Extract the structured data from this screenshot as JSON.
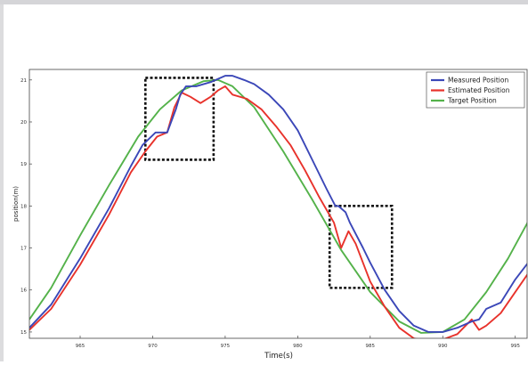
{
  "chart_data": {
    "type": "line",
    "title": "",
    "xlabel": "Time(s)",
    "ylabel": "position(m)",
    "xlim": [
      961.5,
      996
    ],
    "ylim": [
      14.85,
      21.25
    ],
    "x_ticks": [
      {
        "v": 965,
        "label": "965"
      },
      {
        "v": 970,
        "label": "970"
      },
      {
        "v": 975,
        "label": "975"
      },
      {
        "v": 980,
        "label": "980"
      },
      {
        "v": 985,
        "label": "985"
      },
      {
        "v": 990,
        "label": "990"
      },
      {
        "v": 995,
        "label": "995"
      }
    ],
    "y_ticks": [
      {
        "v": 15,
        "label": "15"
      },
      {
        "v": 16,
        "label": "16"
      },
      {
        "v": 17,
        "label": "17"
      },
      {
        "v": 18,
        "label": "18"
      },
      {
        "v": 19,
        "label": "19"
      },
      {
        "v": 20,
        "label": "20"
      },
      {
        "v": 21,
        "label": "21"
      }
    ],
    "legend_position": "top-right",
    "grid": false,
    "series": [
      {
        "name": "Measured Position",
        "color": "#3b47b8",
        "x": [
          961.5,
          963,
          965,
          967,
          968.5,
          969.3,
          970.2,
          971,
          971.6,
          971.9,
          972.3,
          973,
          974,
          975,
          975.5,
          976.3,
          977,
          978,
          979,
          980,
          981,
          982,
          982.6,
          982.8,
          983.3,
          983.6,
          984.5,
          985,
          986,
          987,
          988,
          989,
          990,
          991,
          992,
          992.5,
          993,
          994,
          995,
          996
        ],
        "y": [
          15.1,
          15.65,
          16.75,
          17.95,
          18.95,
          19.45,
          19.75,
          19.75,
          20.3,
          20.65,
          20.85,
          20.85,
          20.95,
          21.1,
          21.1,
          21.0,
          20.9,
          20.65,
          20.3,
          19.8,
          19.1,
          18.4,
          18.0,
          18.0,
          17.85,
          17.6,
          17.0,
          16.65,
          16.0,
          15.5,
          15.15,
          15.0,
          15.0,
          15.1,
          15.25,
          15.3,
          15.55,
          15.7,
          16.25,
          16.7
        ]
      },
      {
        "name": "Estimated Position",
        "color": "#e8322b",
        "x": [
          961.5,
          963,
          965,
          967,
          968.5,
          969.5,
          970.3,
          971,
          971.5,
          972,
          972.6,
          973.3,
          974,
          974.5,
          975,
          975.5,
          976.5,
          977.5,
          978.5,
          979.5,
          980.5,
          981.5,
          982.5,
          983,
          983.5,
          984,
          985,
          986,
          987,
          988,
          989,
          990,
          991,
          992,
          992.5,
          993,
          994,
          995,
          996
        ],
        "y": [
          15.05,
          15.55,
          16.6,
          17.8,
          18.8,
          19.3,
          19.65,
          19.75,
          20.35,
          20.7,
          20.6,
          20.45,
          20.6,
          20.75,
          20.85,
          20.65,
          20.55,
          20.3,
          19.9,
          19.45,
          18.85,
          18.2,
          17.6,
          17.0,
          17.4,
          17.1,
          16.2,
          15.6,
          15.1,
          14.85,
          14.78,
          14.82,
          14.95,
          15.3,
          15.05,
          15.15,
          15.45,
          15.95,
          16.45
        ]
      },
      {
        "name": "Target Position",
        "color": "#54b24a",
        "x": [
          961.5,
          963,
          965,
          967,
          969,
          970.5,
          972,
          973.5,
          974.5,
          975.5,
          977,
          979,
          981,
          983,
          985,
          987,
          988.5,
          990,
          991.5,
          993,
          994.5,
          996
        ],
        "y": [
          15.3,
          16.05,
          17.3,
          18.5,
          19.65,
          20.3,
          20.75,
          20.97,
          21.0,
          20.85,
          20.35,
          19.3,
          18.15,
          16.95,
          15.95,
          15.25,
          14.98,
          15.0,
          15.3,
          15.95,
          16.75,
          17.7
        ]
      }
    ],
    "annotations": [
      {
        "shape": "dashed-rectangle",
        "x": [
          969.5,
          974.2
        ],
        "y": [
          19.1,
          21.05
        ]
      },
      {
        "shape": "dashed-rectangle",
        "x": [
          982.2,
          986.5
        ],
        "y": [
          16.05,
          18.0
        ]
      }
    ]
  }
}
